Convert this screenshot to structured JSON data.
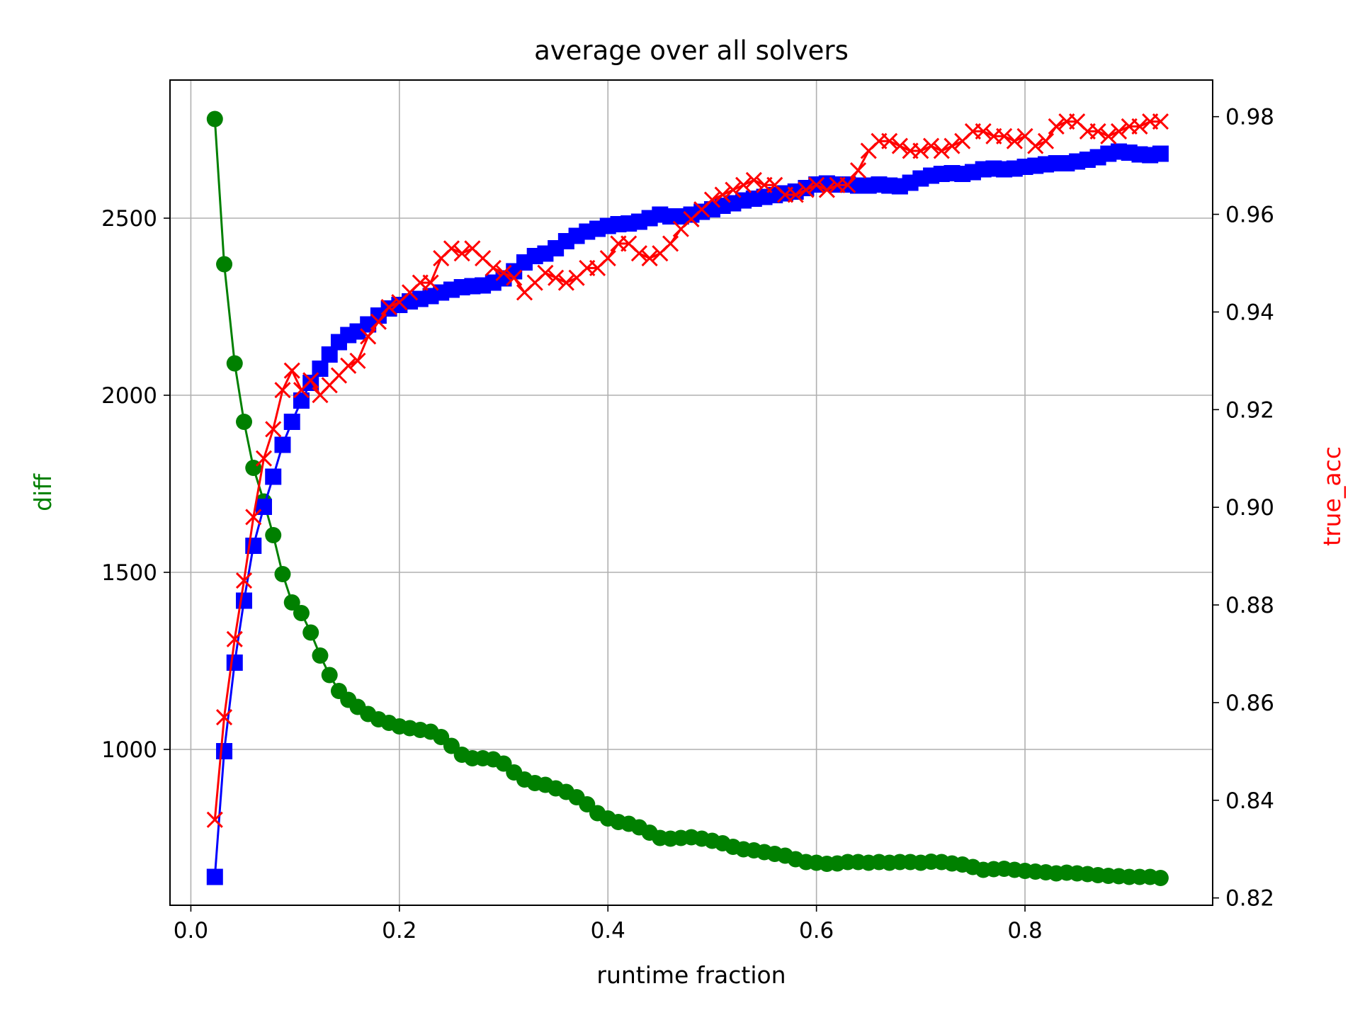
{
  "chart_data": {
    "type": "line",
    "title": "average over all solvers",
    "xlabel": "runtime fraction",
    "ylabel_left": "diff",
    "ylabel_right": "true_acc",
    "ylabel_left_color": "#008000",
    "ylabel_right_color": "#ff0000",
    "xlim": [
      -0.02,
      0.98
    ],
    "ylim_left": [
      560,
      2890
    ],
    "ylim_right": [
      0.8185,
      0.9875
    ],
    "x_ticks": [
      "0.0",
      "0.2",
      "0.4",
      "0.6",
      "0.8"
    ],
    "x_tick_values": [
      0.0,
      0.2,
      0.4,
      0.6,
      0.8
    ],
    "left_ticks": [
      "1000",
      "1500",
      "2000",
      "2500"
    ],
    "left_tick_values": [
      1000,
      1500,
      2000,
      2500
    ],
    "right_ticks": [
      "0.82",
      "0.84",
      "0.86",
      "0.88",
      "0.90",
      "0.92",
      "0.94",
      "0.96",
      "0.98"
    ],
    "right_tick_values": [
      0.82,
      0.84,
      0.86,
      0.88,
      0.9,
      0.92,
      0.94,
      0.96,
      0.98
    ],
    "grid": true,
    "series": [
      {
        "axis": "left",
        "color": "#008000",
        "marker": "circle",
        "points": [
          [
            0.023,
            2780
          ],
          [
            0.032,
            2370
          ],
          [
            0.042,
            2090
          ],
          [
            0.051,
            1925
          ],
          [
            0.06,
            1795
          ],
          [
            0.07,
            1700
          ],
          [
            0.079,
            1605
          ],
          [
            0.088,
            1495
          ],
          [
            0.097,
            1415
          ],
          [
            0.106,
            1385
          ],
          [
            0.115,
            1330
          ],
          [
            0.124,
            1265
          ],
          [
            0.133,
            1210
          ],
          [
            0.142,
            1165
          ],
          [
            0.151,
            1140
          ],
          [
            0.16,
            1120
          ],
          [
            0.17,
            1100
          ],
          [
            0.18,
            1085
          ],
          [
            0.19,
            1075
          ],
          [
            0.2,
            1065
          ],
          [
            0.21,
            1060
          ],
          [
            0.22,
            1055
          ],
          [
            0.23,
            1050
          ],
          [
            0.24,
            1035
          ],
          [
            0.25,
            1010
          ],
          [
            0.26,
            985
          ],
          [
            0.27,
            975
          ],
          [
            0.28,
            975
          ],
          [
            0.29,
            972
          ],
          [
            0.3,
            960
          ],
          [
            0.31,
            935
          ],
          [
            0.32,
            915
          ],
          [
            0.33,
            905
          ],
          [
            0.34,
            900
          ],
          [
            0.35,
            890
          ],
          [
            0.36,
            880
          ],
          [
            0.37,
            865
          ],
          [
            0.38,
            845
          ],
          [
            0.39,
            820
          ],
          [
            0.4,
            805
          ],
          [
            0.41,
            795
          ],
          [
            0.42,
            790
          ],
          [
            0.43,
            780
          ],
          [
            0.44,
            765
          ],
          [
            0.45,
            750
          ],
          [
            0.46,
            748
          ],
          [
            0.47,
            750
          ],
          [
            0.48,
            752
          ],
          [
            0.49,
            748
          ],
          [
            0.5,
            742
          ],
          [
            0.51,
            735
          ],
          [
            0.52,
            725
          ],
          [
            0.53,
            718
          ],
          [
            0.54,
            715
          ],
          [
            0.55,
            710
          ],
          [
            0.56,
            705
          ],
          [
            0.57,
            700
          ],
          [
            0.58,
            690
          ],
          [
            0.59,
            682
          ],
          [
            0.6,
            680
          ],
          [
            0.61,
            677
          ],
          [
            0.62,
            678
          ],
          [
            0.63,
            682
          ],
          [
            0.64,
            682
          ],
          [
            0.65,
            680
          ],
          [
            0.66,
            682
          ],
          [
            0.67,
            680
          ],
          [
            0.68,
            682
          ],
          [
            0.69,
            682
          ],
          [
            0.7,
            680
          ],
          [
            0.71,
            683
          ],
          [
            0.72,
            682
          ],
          [
            0.73,
            678
          ],
          [
            0.74,
            675
          ],
          [
            0.75,
            668
          ],
          [
            0.76,
            660
          ],
          [
            0.77,
            662
          ],
          [
            0.78,
            663
          ],
          [
            0.79,
            660
          ],
          [
            0.8,
            657
          ],
          [
            0.81,
            655
          ],
          [
            0.82,
            653
          ],
          [
            0.83,
            650
          ],
          [
            0.84,
            652
          ],
          [
            0.85,
            650
          ],
          [
            0.86,
            648
          ],
          [
            0.87,
            645
          ],
          [
            0.88,
            643
          ],
          [
            0.89,
            642
          ],
          [
            0.9,
            640
          ],
          [
            0.91,
            640
          ],
          [
            0.92,
            640
          ],
          [
            0.93,
            637
          ]
        ]
      },
      {
        "axis": "left",
        "color": "#0000ff",
        "marker": "square",
        "points": [
          [
            0.023,
            640
          ],
          [
            0.032,
            995
          ],
          [
            0.042,
            1245
          ],
          [
            0.051,
            1420
          ],
          [
            0.06,
            1575
          ],
          [
            0.07,
            1685
          ],
          [
            0.079,
            1770
          ],
          [
            0.088,
            1860
          ],
          [
            0.097,
            1925
          ],
          [
            0.106,
            1985
          ],
          [
            0.115,
            2035
          ],
          [
            0.124,
            2075
          ],
          [
            0.133,
            2115
          ],
          [
            0.142,
            2150
          ],
          [
            0.151,
            2170
          ],
          [
            0.16,
            2180
          ],
          [
            0.17,
            2200
          ],
          [
            0.18,
            2225
          ],
          [
            0.19,
            2245
          ],
          [
            0.2,
            2255
          ],
          [
            0.21,
            2265
          ],
          [
            0.22,
            2272
          ],
          [
            0.23,
            2280
          ],
          [
            0.24,
            2290
          ],
          [
            0.25,
            2298
          ],
          [
            0.26,
            2305
          ],
          [
            0.27,
            2308
          ],
          [
            0.28,
            2310
          ],
          [
            0.29,
            2318
          ],
          [
            0.3,
            2330
          ],
          [
            0.31,
            2350
          ],
          [
            0.32,
            2375
          ],
          [
            0.33,
            2393
          ],
          [
            0.34,
            2400
          ],
          [
            0.35,
            2415
          ],
          [
            0.36,
            2435
          ],
          [
            0.37,
            2450
          ],
          [
            0.38,
            2462
          ],
          [
            0.39,
            2470
          ],
          [
            0.4,
            2478
          ],
          [
            0.41,
            2483
          ],
          [
            0.42,
            2485
          ],
          [
            0.43,
            2490
          ],
          [
            0.44,
            2500
          ],
          [
            0.45,
            2510
          ],
          [
            0.46,
            2505
          ],
          [
            0.47,
            2505
          ],
          [
            0.48,
            2510
          ],
          [
            0.49,
            2518
          ],
          [
            0.5,
            2525
          ],
          [
            0.51,
            2535
          ],
          [
            0.52,
            2542
          ],
          [
            0.53,
            2550
          ],
          [
            0.54,
            2555
          ],
          [
            0.55,
            2560
          ],
          [
            0.56,
            2565
          ],
          [
            0.57,
            2570
          ],
          [
            0.58,
            2575
          ],
          [
            0.59,
            2585
          ],
          [
            0.6,
            2595
          ],
          [
            0.61,
            2598
          ],
          [
            0.62,
            2595
          ],
          [
            0.63,
            2595
          ],
          [
            0.64,
            2592
          ],
          [
            0.65,
            2592
          ],
          [
            0.66,
            2595
          ],
          [
            0.67,
            2592
          ],
          [
            0.68,
            2590
          ],
          [
            0.69,
            2600
          ],
          [
            0.7,
            2612
          ],
          [
            0.71,
            2620
          ],
          [
            0.72,
            2625
          ],
          [
            0.73,
            2627
          ],
          [
            0.74,
            2625
          ],
          [
            0.75,
            2630
          ],
          [
            0.76,
            2638
          ],
          [
            0.77,
            2640
          ],
          [
            0.78,
            2638
          ],
          [
            0.79,
            2640
          ],
          [
            0.8,
            2645
          ],
          [
            0.81,
            2648
          ],
          [
            0.82,
            2652
          ],
          [
            0.83,
            2655
          ],
          [
            0.84,
            2655
          ],
          [
            0.85,
            2660
          ],
          [
            0.86,
            2665
          ],
          [
            0.87,
            2672
          ],
          [
            0.88,
            2682
          ],
          [
            0.89,
            2688
          ],
          [
            0.9,
            2685
          ],
          [
            0.91,
            2680
          ],
          [
            0.92,
            2678
          ],
          [
            0.93,
            2682
          ]
        ]
      },
      {
        "axis": "right",
        "color": "#ff0000",
        "marker": "x",
        "points": [
          [
            0.023,
            0.836
          ],
          [
            0.032,
            0.857
          ],
          [
            0.042,
            0.873
          ],
          [
            0.051,
            0.885
          ],
          [
            0.06,
            0.898
          ],
          [
            0.07,
            0.91
          ],
          [
            0.079,
            0.916
          ],
          [
            0.088,
            0.924
          ],
          [
            0.097,
            0.928
          ],
          [
            0.106,
            0.924
          ],
          [
            0.115,
            0.926
          ],
          [
            0.124,
            0.923
          ],
          [
            0.133,
            0.925
          ],
          [
            0.142,
            0.927
          ],
          [
            0.151,
            0.929
          ],
          [
            0.16,
            0.93
          ],
          [
            0.17,
            0.935
          ],
          [
            0.18,
            0.938
          ],
          [
            0.19,
            0.941
          ],
          [
            0.2,
            0.942
          ],
          [
            0.21,
            0.944
          ],
          [
            0.22,
            0.946
          ],
          [
            0.23,
            0.946
          ],
          [
            0.24,
            0.951
          ],
          [
            0.25,
            0.953
          ],
          [
            0.26,
            0.952
          ],
          [
            0.27,
            0.953
          ],
          [
            0.28,
            0.951
          ],
          [
            0.29,
            0.949
          ],
          [
            0.3,
            0.948
          ],
          [
            0.31,
            0.947
          ],
          [
            0.32,
            0.944
          ],
          [
            0.33,
            0.946
          ],
          [
            0.34,
            0.948
          ],
          [
            0.35,
            0.947
          ],
          [
            0.36,
            0.946
          ],
          [
            0.37,
            0.947
          ],
          [
            0.38,
            0.949
          ],
          [
            0.39,
            0.949
          ],
          [
            0.4,
            0.951
          ],
          [
            0.41,
            0.954
          ],
          [
            0.42,
            0.954
          ],
          [
            0.43,
            0.952
          ],
          [
            0.44,
            0.951
          ],
          [
            0.45,
            0.952
          ],
          [
            0.46,
            0.954
          ],
          [
            0.47,
            0.957
          ],
          [
            0.48,
            0.959
          ],
          [
            0.49,
            0.961
          ],
          [
            0.5,
            0.963
          ],
          [
            0.51,
            0.964
          ],
          [
            0.52,
            0.965
          ],
          [
            0.53,
            0.966
          ],
          [
            0.54,
            0.967
          ],
          [
            0.55,
            0.966
          ],
          [
            0.56,
            0.966
          ],
          [
            0.57,
            0.964
          ],
          [
            0.58,
            0.964
          ],
          [
            0.59,
            0.965
          ],
          [
            0.6,
            0.966
          ],
          [
            0.61,
            0.965
          ],
          [
            0.62,
            0.966
          ],
          [
            0.63,
            0.966
          ],
          [
            0.64,
            0.969
          ],
          [
            0.65,
            0.973
          ],
          [
            0.66,
            0.975
          ],
          [
            0.67,
            0.975
          ],
          [
            0.68,
            0.974
          ],
          [
            0.69,
            0.973
          ],
          [
            0.7,
            0.973
          ],
          [
            0.71,
            0.974
          ],
          [
            0.72,
            0.973
          ],
          [
            0.73,
            0.974
          ],
          [
            0.74,
            0.975
          ],
          [
            0.75,
            0.977
          ],
          [
            0.76,
            0.977
          ],
          [
            0.77,
            0.976
          ],
          [
            0.78,
            0.976
          ],
          [
            0.79,
            0.975
          ],
          [
            0.8,
            0.976
          ],
          [
            0.81,
            0.974
          ],
          [
            0.82,
            0.975
          ],
          [
            0.83,
            0.978
          ],
          [
            0.84,
            0.979
          ],
          [
            0.85,
            0.979
          ],
          [
            0.86,
            0.977
          ],
          [
            0.87,
            0.977
          ],
          [
            0.88,
            0.976
          ],
          [
            0.89,
            0.977
          ],
          [
            0.9,
            0.978
          ],
          [
            0.91,
            0.978
          ],
          [
            0.92,
            0.979
          ],
          [
            0.93,
            0.979
          ]
        ]
      }
    ]
  }
}
